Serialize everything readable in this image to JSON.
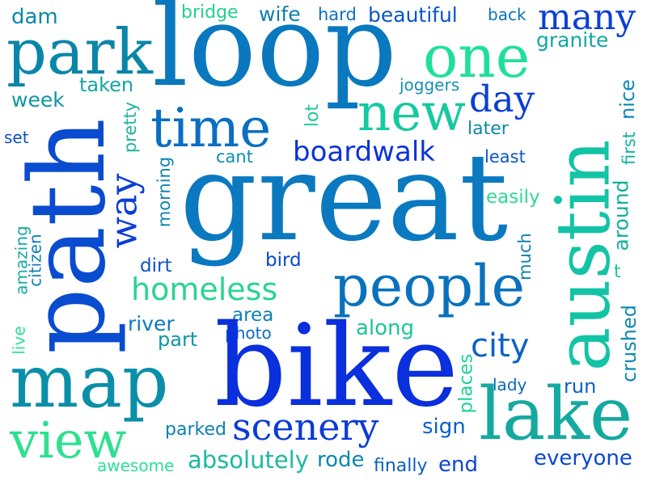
{
  "words": {
    "dam": {
      "text": "dam",
      "color": "#0a8aa6"
    },
    "bridge": {
      "text": "bridge",
      "color": "#22d28f"
    },
    "wife": {
      "text": "wife",
      "color": "#0f7fb0"
    },
    "hard": {
      "text": "hard",
      "color": "#0b6fc8"
    },
    "beautiful": {
      "text": "beautiful",
      "color": "#0a55c8"
    },
    "back": {
      "text": "back",
      "color": "#0b74c0"
    },
    "many": {
      "text": "many",
      "color": "#0a3fd6"
    },
    "granite": {
      "text": "granite",
      "color": "#12a6a5"
    },
    "park": {
      "text": "park",
      "color": "#0a86a8"
    },
    "loop": {
      "text": "loop",
      "color": "#0a78be"
    },
    "one": {
      "text": "one",
      "color": "#1fe09a"
    },
    "taken": {
      "text": "taken",
      "color": "#15a7a2"
    },
    "joggers": {
      "text": "joggers",
      "color": "#1290b5"
    },
    "week": {
      "text": "week",
      "color": "#0f95a6"
    },
    "new": {
      "text": "new",
      "color": "#16c9a1"
    },
    "day": {
      "text": "day",
      "color": "#0b3fd1"
    },
    "nice": {
      "text": "nice",
      "color": "#0b88b6"
    },
    "set": {
      "text": "set",
      "color": "#0c4ec4"
    },
    "pretty": {
      "text": "pretty",
      "color": "#1cb49e"
    },
    "time": {
      "text": "time",
      "color": "#0a6fc2"
    },
    "lot": {
      "text": "lot",
      "color": "#1dc79a"
    },
    "later": {
      "text": "later",
      "color": "#0e8aa9"
    },
    "first": {
      "text": "first",
      "color": "#13b29f"
    },
    "cant": {
      "text": "cant",
      "color": "#0b8fb7"
    },
    "boardwalk": {
      "text": "boardwalk",
      "color": "#0a33d8"
    },
    "least": {
      "text": "least",
      "color": "#0b56c5"
    },
    "path": {
      "text": "path",
      "color": "#0a4cd0"
    },
    "morning": {
      "text": "morning",
      "color": "#0d85b2"
    },
    "way": {
      "text": "way",
      "color": "#0b3ed6"
    },
    "great": {
      "text": "great",
      "color": "#0a79c0"
    },
    "austin": {
      "text": "austin",
      "color": "#12c4a5"
    },
    "easily": {
      "text": "easily",
      "color": "#2ed994"
    },
    "around": {
      "text": "around",
      "color": "#15aea0"
    },
    "amazing": {
      "text": "amazing",
      "color": "#14a9a2"
    },
    "citizen": {
      "text": "citizen",
      "color": "#0c7fb6"
    },
    "dirt": {
      "text": "dirt",
      "color": "#0c55c4"
    },
    "bird": {
      "text": "bird",
      "color": "#0a48cc"
    },
    "much": {
      "text": "much",
      "color": "#0f7fae"
    },
    "t": {
      "text": "t",
      "color": "#1fc89a"
    },
    "live": {
      "text": "live",
      "color": "#2ee093"
    },
    "homeless": {
      "text": "homeless",
      "color": "#2ad492"
    },
    "people": {
      "text": "people",
      "color": "#0a72bd"
    },
    "area": {
      "text": "area",
      "color": "#0c81b4"
    },
    "river": {
      "text": "river",
      "color": "#0b7ab8"
    },
    "photo": {
      "text": "photo",
      "color": "#0b6cc0"
    },
    "along": {
      "text": "along",
      "color": "#1cc599"
    },
    "part": {
      "text": "part",
      "color": "#0e97a9"
    },
    "crushed": {
      "text": "crushed",
      "color": "#0e8ab0"
    },
    "city": {
      "text": "city",
      "color": "#0b63c4"
    },
    "map": {
      "text": "map",
      "color": "#0b8fa9"
    },
    "bike": {
      "text": "bike",
      "color": "#0a2fdc"
    },
    "places": {
      "text": "places",
      "color": "#1fd198"
    },
    "lady": {
      "text": "lady",
      "color": "#0c67c0"
    },
    "run": {
      "text": "run",
      "color": "#0a60c7"
    },
    "lake": {
      "text": "lake",
      "color": "#15a9a0"
    },
    "view": {
      "text": "view",
      "color": "#2ee08f"
    },
    "parked": {
      "text": "parked",
      "color": "#0b7fb7"
    },
    "scenery": {
      "text": "scenery",
      "color": "#0a3ad8"
    },
    "sign": {
      "text": "sign",
      "color": "#0b5fc6"
    },
    "awesome": {
      "text": "awesome",
      "color": "#2be093"
    },
    "absolutely": {
      "text": "absolutely",
      "color": "#1db9a0"
    },
    "rode": {
      "text": "rode",
      "color": "#0c86b2"
    },
    "finally": {
      "text": "finally",
      "color": "#0c5ec6"
    },
    "end": {
      "text": "end",
      "color": "#0a47cf"
    },
    "everyone": {
      "text": "everyone",
      "color": "#0a48cc"
    }
  }
}
